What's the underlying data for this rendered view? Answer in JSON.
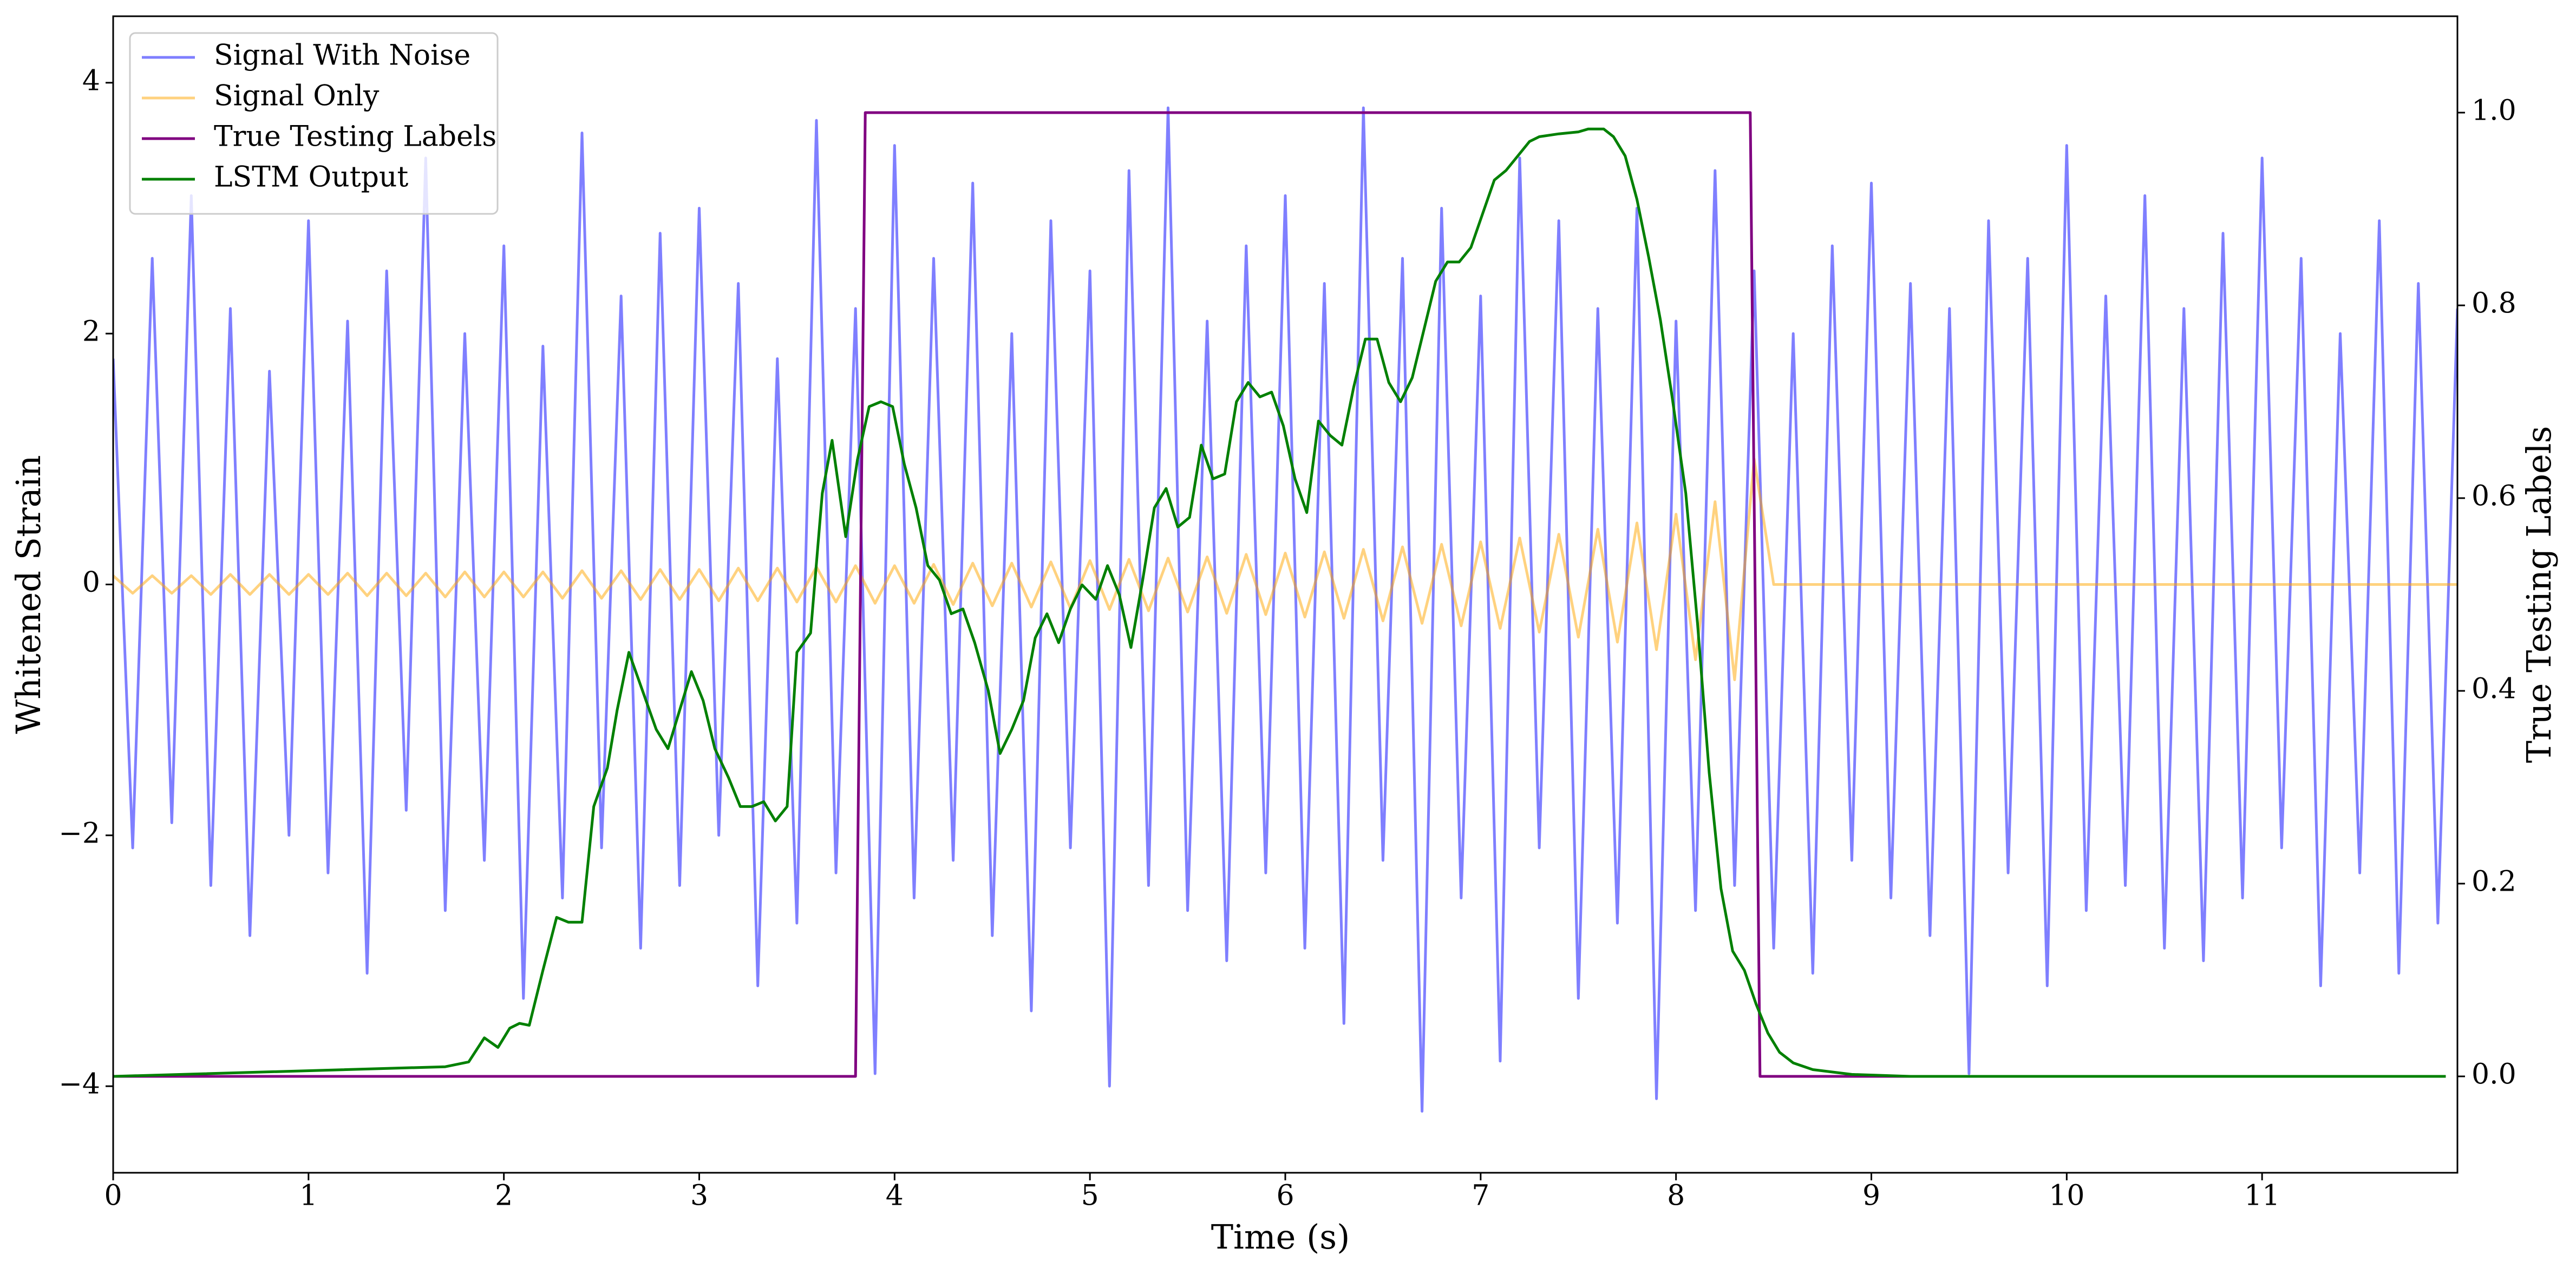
{
  "chart_data": {
    "type": "line",
    "xlabel": "Time (s)",
    "ylabel": "Whitened Strain",
    "y2label": "True Testing Labels",
    "legend": "upper left",
    "xlim": [
      0,
      12
    ],
    "xticks": [
      0,
      1,
      2,
      3,
      4,
      5,
      6,
      7,
      8,
      9,
      10,
      11
    ],
    "ylim": [
      -4.69,
      4.53
    ],
    "yticks": [
      {
        "value": -4,
        "label": "−4"
      },
      {
        "value": -2,
        "label": "−2"
      },
      0,
      2,
      4
    ],
    "y2lim": [
      -0.1,
      1.1
    ],
    "y2ticks": [
      {
        "value": 0,
        "label": "0.0"
      },
      0.2,
      0.4,
      0.6,
      0.8,
      {
        "value": 1,
        "label": "1.0"
      }
    ],
    "x": [
      0,
      0.1,
      0.2,
      0.3,
      0.4,
      0.5,
      0.6,
      0.7,
      0.8,
      0.9,
      1,
      1.1,
      1.2,
      1.3,
      1.4,
      1.5,
      1.6,
      1.7,
      1.8,
      1.9,
      2,
      2.1,
      2.2,
      2.3,
      2.4,
      2.5,
      2.6,
      2.7,
      2.8,
      2.9,
      3,
      3.1,
      3.2,
      3.3,
      3.4,
      3.5,
      3.6,
      3.7,
      3.8,
      3.9,
      4,
      4.1,
      4.2,
      4.3,
      4.4,
      4.5,
      4.6,
      4.7,
      4.8,
      4.9,
      5,
      5.1,
      5.2,
      5.3,
      5.4,
      5.5,
      5.6,
      5.7,
      5.8,
      5.9,
      6,
      6.1,
      6.2,
      6.3,
      6.4,
      6.5,
      6.6,
      6.7,
      6.8,
      6.9,
      7,
      7.1,
      7.2,
      7.3,
      7.4,
      7.5,
      7.6,
      7.7,
      7.8,
      7.9,
      8,
      8.1,
      8.2,
      8.3,
      8.4,
      8.5,
      8.6,
      8.7,
      8.8,
      8.9,
      9,
      9.1,
      9.2,
      9.3,
      9.4,
      9.5,
      9.6,
      9.7,
      9.8,
      9.9,
      10,
      10.1,
      10.2,
      10.3,
      10.4,
      10.5,
      10.6,
      10.7,
      10.8,
      10.9,
      11,
      11.1,
      11.2,
      11.3,
      11.4,
      11.5,
      11.6,
      11.7,
      11.8,
      11.9,
      12
    ],
    "series": [
      {
        "name": "Signal With Noise",
        "color": "blue",
        "alpha": 0.5,
        "values": [
          1.8,
          -2.1,
          2.6,
          -1.9,
          3.1,
          -2.4,
          2.2,
          -2.8,
          1.7,
          -2.0,
          2.9,
          -2.3,
          2.1,
          -3.1,
          2.5,
          -1.8,
          3.4,
          -2.6,
          2.0,
          -2.2,
          2.7,
          -3.3,
          1.9,
          -2.5,
          3.6,
          -2.1,
          2.3,
          -2.9,
          2.8,
          -2.4,
          3.0,
          -2.0,
          2.4,
          -3.2,
          1.8,
          -2.7,
          3.7,
          -2.3,
          2.2,
          -3.9,
          3.5,
          -2.5,
          2.6,
          -2.2,
          3.2,
          -2.8,
          2.0,
          -3.4,
          2.9,
          -2.1,
          2.5,
          -4.0,
          3.3,
          -2.4,
          3.8,
          -2.6,
          2.1,
          -3.0,
          2.7,
          -2.3,
          3.1,
          -2.9,
          2.4,
          -3.5,
          3.8,
          -2.2,
          2.6,
          -4.2,
          3.0,
          -2.5,
          2.3,
          -3.8,
          3.4,
          -2.1,
          2.9,
          -3.3,
          2.2,
          -2.7,
          3.0,
          -4.1,
          2.1,
          -2.6,
          3.3,
          -2.4,
          2.5,
          -2.9,
          2.0,
          -3.1,
          2.7,
          -2.2,
          3.2,
          -2.5,
          2.4,
          -2.8,
          2.2,
          -3.9,
          2.9,
          -2.3,
          2.6,
          -3.2,
          3.5,
          -2.6,
          2.3,
          -2.4,
          3.1,
          -2.9,
          2.2,
          -3.0,
          2.8,
          -2.5,
          3.4,
          -2.1,
          2.6,
          -3.2,
          2.0,
          -2.3,
          2.9,
          -3.1,
          2.4,
          -2.7,
          2.2
        ]
      },
      {
        "name": "Signal Only",
        "color": "orange",
        "alpha": 0.5,
        "values": [
          0.07,
          -0.07,
          0.07,
          -0.07,
          0.07,
          -0.08,
          0.08,
          -0.08,
          0.08,
          -0.08,
          0.08,
          -0.08,
          0.09,
          -0.09,
          0.09,
          -0.09,
          0.09,
          -0.1,
          0.1,
          -0.1,
          0.1,
          -0.1,
          0.1,
          -0.11,
          0.11,
          -0.11,
          0.11,
          -0.12,
          0.12,
          -0.12,
          0.12,
          -0.13,
          0.13,
          -0.13,
          0.13,
          -0.14,
          0.14,
          -0.14,
          0.15,
          -0.15,
          0.15,
          -0.15,
          0.16,
          -0.16,
          0.17,
          -0.17,
          0.17,
          -0.18,
          0.18,
          -0.19,
          0.19,
          -0.2,
          0.2,
          -0.21,
          0.21,
          -0.22,
          0.22,
          -0.23,
          0.24,
          -0.24,
          0.25,
          -0.26,
          0.26,
          -0.27,
          0.28,
          -0.29,
          0.3,
          -0.31,
          0.32,
          -0.33,
          0.34,
          -0.35,
          0.37,
          -0.38,
          0.4,
          -0.42,
          0.44,
          -0.46,
          0.49,
          -0.52,
          0.56,
          -0.6,
          0.66,
          -0.76,
          1.0,
          0,
          0,
          0,
          0,
          0,
          0,
          0,
          0,
          0,
          0,
          0,
          0,
          0,
          0,
          0,
          0,
          0,
          0,
          0,
          0,
          0,
          0,
          0,
          0,
          0,
          0,
          0,
          0,
          0,
          0,
          0,
          0,
          0,
          0,
          0,
          0
        ]
      },
      {
        "name": "True Testing Labels",
        "color": "purple",
        "axis": "y2",
        "x": [
          0,
          3.8,
          3.85,
          8.38,
          8.43,
          11.94
        ],
        "values": [
          0,
          0,
          1,
          1,
          0,
          0
        ]
      },
      {
        "name": "LSTM Output",
        "color": "green",
        "axis": "y2",
        "x": [
          0,
          1.7,
          1.82,
          1.9,
          1.97,
          2.03,
          2.08,
          2.13,
          2.2,
          2.27,
          2.33,
          2.4,
          2.46,
          2.53,
          2.58,
          2.64,
          2.71,
          2.78,
          2.84,
          2.9,
          2.96,
          3.02,
          3.08,
          3.15,
          3.21,
          3.27,
          3.33,
          3.39,
          3.45,
          3.5,
          3.57,
          3.63,
          3.68,
          3.75,
          3.81,
          3.87,
          3.93,
          3.99,
          4.05,
          4.11,
          4.17,
          4.23,
          4.29,
          4.35,
          4.41,
          4.48,
          4.54,
          4.6,
          4.66,
          4.72,
          4.78,
          4.84,
          4.9,
          4.96,
          5.03,
          5.09,
          5.15,
          5.21,
          5.27,
          5.33,
          5.39,
          5.45,
          5.51,
          5.57,
          5.63,
          5.69,
          5.75,
          5.81,
          5.87,
          5.93,
          5.99,
          6.05,
          6.11,
          6.17,
          6.23,
          6.29,
          6.35,
          6.41,
          6.47,
          6.53,
          6.59,
          6.65,
          6.71,
          6.77,
          6.83,
          6.89,
          6.95,
          7.01,
          7.07,
          7.13,
          7.19,
          7.25,
          7.3,
          7.4,
          7.5,
          7.55,
          7.63,
          7.68,
          7.74,
          7.8,
          7.86,
          7.92,
          7.98,
          8.05,
          8.11,
          8.17,
          8.23,
          8.29,
          8.35,
          8.41,
          8.47,
          8.53,
          8.6,
          8.7,
          8.9,
          9.2,
          11.94
        ],
        "values": [
          0,
          0.01,
          0.015,
          0.04,
          0.03,
          0.05,
          0.055,
          0.053,
          0.11,
          0.165,
          0.16,
          0.16,
          0.28,
          0.32,
          0.38,
          0.44,
          0.4,
          0.36,
          0.34,
          0.38,
          0.42,
          0.39,
          0.34,
          0.31,
          0.28,
          0.28,
          0.285,
          0.265,
          0.28,
          0.44,
          0.46,
          0.605,
          0.66,
          0.56,
          0.64,
          0.695,
          0.7,
          0.695,
          0.635,
          0.59,
          0.53,
          0.515,
          0.48,
          0.485,
          0.45,
          0.4,
          0.335,
          0.36,
          0.39,
          0.455,
          0.48,
          0.45,
          0.485,
          0.51,
          0.495,
          0.53,
          0.5,
          0.445,
          0.515,
          0.59,
          0.61,
          0.57,
          0.58,
          0.655,
          0.62,
          0.625,
          0.7,
          0.72,
          0.705,
          0.71,
          0.675,
          0.62,
          0.585,
          0.68,
          0.665,
          0.655,
          0.715,
          0.765,
          0.765,
          0.72,
          0.7,
          0.725,
          0.775,
          0.825,
          0.845,
          0.845,
          0.86,
          0.895,
          0.93,
          0.94,
          0.955,
          0.97,
          0.975,
          0.978,
          0.98,
          0.983,
          0.983,
          0.975,
          0.955,
          0.91,
          0.85,
          0.785,
          0.705,
          0.605,
          0.47,
          0.315,
          0.195,
          0.13,
          0.11,
          0.075,
          0.045,
          0.025,
          0.014,
          0.007,
          0.002,
          0,
          0
        ]
      }
    ]
  }
}
